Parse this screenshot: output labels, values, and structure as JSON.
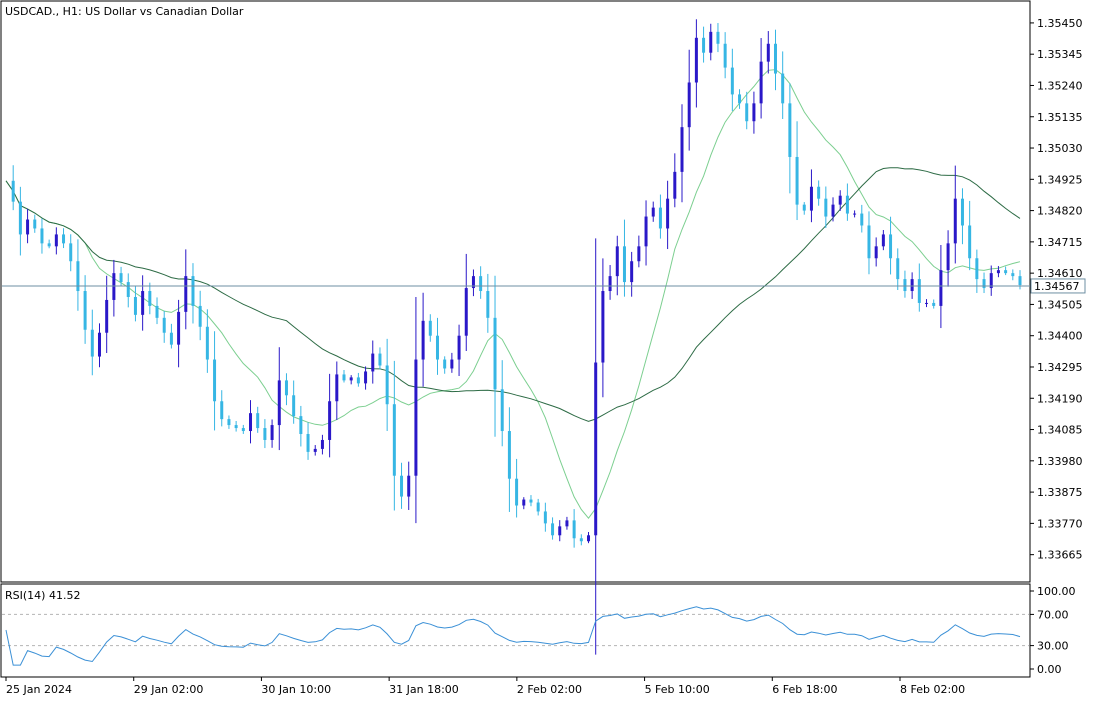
{
  "title": "USDCAD., H1:  US Dollar vs Canadian Dollar",
  "chart_data": {
    "type": "candlestick",
    "symbol": "USDCAD.",
    "timeframe": "H1",
    "title": "USDCAD., H1:  US Dollar vs Canadian Dollar",
    "price_axis": {
      "ylim": [
        1.3359,
        1.3549
      ],
      "ticks": [
        "1.35450",
        "1.35345",
        "1.35240",
        "1.35135",
        "1.35030",
        "1.34925",
        "1.34820",
        "1.34715",
        "1.34610",
        "1.34505",
        "1.34400",
        "1.34295",
        "1.34190",
        "1.34085",
        "1.33980",
        "1.33875",
        "1.33770",
        "1.33665"
      ]
    },
    "current_price": "1.34567",
    "time_axis_labels": [
      "25 Jan 2024",
      "29 Jan 02:00",
      "30 Jan 10:00",
      "31 Jan 18:00",
      "2 Feb 02:00",
      "5 Feb 10:00",
      "6 Feb 18:00",
      "8 Feb 02:00"
    ],
    "price_path": [
      1.3492,
      1.3485,
      1.3474,
      1.3479,
      1.3476,
      1.3471,
      1.347,
      1.3474,
      1.3471,
      1.3465,
      1.3455,
      1.3442,
      1.3433,
      1.3441,
      1.3452,
      1.3461,
      1.3458,
      1.3453,
      1.3447,
      1.3455,
      1.345,
      1.3446,
      1.3441,
      1.3437,
      1.3448,
      1.346,
      1.345,
      1.3443,
      1.3432,
      1.3418,
      1.3412,
      1.341,
      1.3409,
      1.3408,
      1.3414,
      1.3409,
      1.3405,
      1.341,
      1.3425,
      1.342,
      1.3413,
      1.3407,
      1.3401,
      1.3402,
      1.3405,
      1.3418,
      1.3427,
      1.3425,
      1.3426,
      1.3424,
      1.3428,
      1.3434,
      1.343,
      1.3417,
      1.3393,
      1.3386,
      1.3393,
      1.3432,
      1.3445,
      1.344,
      1.3432,
      1.3429,
      1.3432,
      1.344,
      1.3456,
      1.346,
      1.3455,
      1.3446,
      1.3422,
      1.3408,
      1.3392,
      1.3383,
      1.3385,
      1.3384,
      1.3381,
      1.3377,
      1.3373,
      1.3376,
      1.3378,
      1.3372,
      1.3371,
      1.3373,
      1.3431,
      1.3455,
      1.346,
      1.347,
      1.3458,
      1.3465,
      1.347,
      1.348,
      1.3483,
      1.3476,
      1.3486,
      1.3495,
      1.351,
      1.3525,
      1.354,
      1.3535,
      1.3542,
      1.3538,
      1.353,
      1.3521,
      1.3518,
      1.3512,
      1.3518,
      1.3532,
      1.3538,
      1.3528,
      1.3518,
      1.35,
      1.3484,
      1.3482,
      1.349,
      1.3486,
      1.348,
      1.3484,
      1.3487,
      1.3481,
      1.3481,
      1.3477,
      1.3466,
      1.347,
      1.3474,
      1.3466,
      1.3459,
      1.3455,
      1.3459,
      1.3451,
      1.3451,
      1.345,
      1.3462,
      1.3471,
      1.3486,
      1.3477,
      1.3466,
      1.3459,
      1.3456,
      1.3461,
      1.3462,
      1.3461,
      1.346,
      1.3457
    ],
    "indicators": {
      "moving_averages": 3,
      "rsi": {
        "period": 14,
        "value": 41.52,
        "label": "RSI(14) 41.52",
        "levels": [
          70,
          30
        ],
        "ylim": [
          0,
          100
        ],
        "ticks": [
          "100.00",
          "70.00",
          "30.00",
          "0.00"
        ]
      }
    }
  },
  "colors": {
    "bull": "#2a18c8",
    "bear": "#36b6e4",
    "ma_fast": "#7ccf90",
    "ma_slow": "#2d6b45",
    "rsi": "#3b90d6",
    "grid": "#b4b4b4",
    "frame": "#000000"
  }
}
